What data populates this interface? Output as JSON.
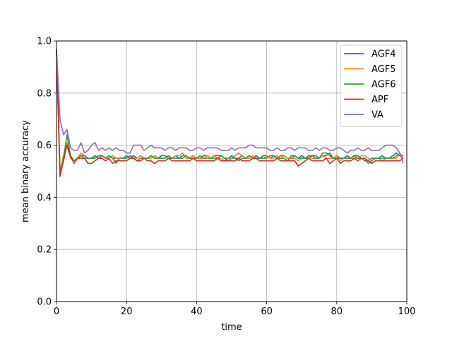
{
  "chart_data": {
    "type": "line",
    "xlabel": "time",
    "ylabel": "mean binary accuracy",
    "xlim": [
      0,
      100
    ],
    "ylim": [
      0,
      1
    ],
    "xticks": [
      0,
      20,
      40,
      60,
      80,
      100
    ],
    "xtick_labels": [
      "0",
      "20",
      "40",
      "60",
      "80",
      "100"
    ],
    "yticks": [
      0,
      0.2,
      0.4,
      0.6,
      0.8,
      1.0
    ],
    "ytick_labels": [
      "0.0",
      "0.2",
      "0.4",
      "0.6",
      "0.8",
      "1.0"
    ],
    "grid": true,
    "legend_position": "top-right",
    "series": [
      {
        "name": "AGF4",
        "color": "#1f77b4",
        "values": [
          0.97,
          0.49,
          0.55,
          0.6,
          0.55,
          0.54,
          0.55,
          0.56,
          0.55,
          0.55,
          0.55,
          0.56,
          0.55,
          0.56,
          0.55,
          0.56,
          0.55,
          0.55,
          0.55,
          0.55,
          0.56,
          0.55,
          0.56,
          0.55,
          0.56,
          0.55,
          0.55,
          0.56,
          0.55,
          0.55,
          0.56,
          0.56,
          0.55,
          0.55,
          0.56,
          0.55,
          0.56,
          0.56,
          0.55,
          0.56,
          0.55,
          0.55,
          0.56,
          0.56,
          0.55,
          0.56,
          0.56,
          0.56,
          0.55,
          0.55,
          0.56,
          0.55,
          0.55,
          0.56,
          0.55,
          0.56,
          0.55,
          0.56,
          0.55,
          0.56,
          0.56,
          0.55,
          0.56,
          0.55,
          0.56,
          0.56,
          0.55,
          0.55,
          0.56,
          0.55,
          0.56,
          0.55,
          0.55,
          0.56,
          0.56,
          0.55,
          0.56,
          0.56,
          0.57,
          0.55,
          0.56,
          0.55,
          0.55,
          0.56,
          0.55,
          0.56,
          0.56,
          0.55,
          0.55,
          0.54,
          0.55,
          0.55,
          0.55,
          0.56,
          0.55,
          0.55,
          0.56,
          0.57,
          0.56,
          0.56
        ]
      },
      {
        "name": "AGF5",
        "color": "#ff7f0e",
        "values": [
          0.97,
          0.5,
          0.56,
          0.61,
          0.55,
          0.54,
          0.55,
          0.57,
          0.56,
          0.55,
          0.55,
          0.55,
          0.56,
          0.56,
          0.55,
          0.55,
          0.56,
          0.55,
          0.55,
          0.55,
          0.55,
          0.56,
          0.55,
          0.55,
          0.56,
          0.55,
          0.55,
          0.55,
          0.56,
          0.55,
          0.55,
          0.55,
          0.56,
          0.55,
          0.56,
          0.56,
          0.57,
          0.55,
          0.55,
          0.56,
          0.55,
          0.55,
          0.55,
          0.56,
          0.55,
          0.56,
          0.55,
          0.55,
          0.54,
          0.55,
          0.55,
          0.56,
          0.57,
          0.56,
          0.55,
          0.55,
          0.56,
          0.55,
          0.55,
          0.55,
          0.56,
          0.55,
          0.55,
          0.56,
          0.55,
          0.56,
          0.55,
          0.55,
          0.55,
          0.54,
          0.55,
          0.55,
          0.56,
          0.55,
          0.55,
          0.55,
          0.56,
          0.55,
          0.55,
          0.55,
          0.56,
          0.54,
          0.55,
          0.55,
          0.55,
          0.55,
          0.55,
          0.56,
          0.56,
          0.55,
          0.54,
          0.55,
          0.55,
          0.54,
          0.55,
          0.55,
          0.55,
          0.55,
          0.57,
          0.55
        ]
      },
      {
        "name": "AGF6",
        "color": "#2ca02c",
        "values": [
          0.97,
          0.49,
          0.55,
          0.64,
          0.56,
          0.54,
          0.55,
          0.56,
          0.56,
          0.55,
          0.55,
          0.55,
          0.56,
          0.56,
          0.55,
          0.56,
          0.55,
          0.53,
          0.55,
          0.55,
          0.55,
          0.56,
          0.55,
          0.54,
          0.55,
          0.55,
          0.55,
          0.56,
          0.55,
          0.55,
          0.55,
          0.55,
          0.56,
          0.55,
          0.55,
          0.55,
          0.55,
          0.56,
          0.55,
          0.55,
          0.55,
          0.56,
          0.55,
          0.55,
          0.55,
          0.55,
          0.55,
          0.56,
          0.55,
          0.54,
          0.55,
          0.55,
          0.54,
          0.55,
          0.55,
          0.56,
          0.55,
          0.55,
          0.55,
          0.55,
          0.55,
          0.56,
          0.56,
          0.55,
          0.55,
          0.55,
          0.54,
          0.56,
          0.56,
          0.55,
          0.55,
          0.55,
          0.56,
          0.56,
          0.55,
          0.55,
          0.57,
          0.57,
          0.56,
          0.55,
          0.55,
          0.55,
          0.55,
          0.55,
          0.55,
          0.56,
          0.55,
          0.55,
          0.55,
          0.53,
          0.54,
          0.55,
          0.55,
          0.55,
          0.55,
          0.55,
          0.55,
          0.56,
          0.56,
          0.56
        ]
      },
      {
        "name": "APF",
        "color": "#d62728",
        "values": [
          0.97,
          0.48,
          0.54,
          0.6,
          0.56,
          0.53,
          0.55,
          0.55,
          0.55,
          0.53,
          0.53,
          0.54,
          0.55,
          0.55,
          0.54,
          0.55,
          0.53,
          0.54,
          0.54,
          0.54,
          0.54,
          0.55,
          0.55,
          0.54,
          0.54,
          0.55,
          0.54,
          0.54,
          0.53,
          0.54,
          0.54,
          0.54,
          0.55,
          0.54,
          0.54,
          0.54,
          0.54,
          0.54,
          0.54,
          0.55,
          0.54,
          0.54,
          0.54,
          0.54,
          0.54,
          0.54,
          0.55,
          0.54,
          0.54,
          0.54,
          0.54,
          0.54,
          0.55,
          0.54,
          0.54,
          0.54,
          0.55,
          0.55,
          0.54,
          0.54,
          0.54,
          0.54,
          0.54,
          0.55,
          0.54,
          0.54,
          0.54,
          0.54,
          0.54,
          0.52,
          0.53,
          0.54,
          0.55,
          0.54,
          0.54,
          0.54,
          0.54,
          0.55,
          0.53,
          0.54,
          0.55,
          0.53,
          0.54,
          0.54,
          0.54,
          0.55,
          0.54,
          0.55,
          0.54,
          0.54,
          0.53,
          0.54,
          0.54,
          0.54,
          0.54,
          0.54,
          0.54,
          0.54,
          0.54,
          0.55
        ]
      },
      {
        "name": "VA",
        "color": "#9467bd",
        "values": [
          0.97,
          0.7,
          0.64,
          0.66,
          0.59,
          0.58,
          0.58,
          0.61,
          0.57,
          0.58,
          0.6,
          0.61,
          0.58,
          0.59,
          0.58,
          0.59,
          0.58,
          0.59,
          0.58,
          0.58,
          0.57,
          0.57,
          0.6,
          0.6,
          0.6,
          0.58,
          0.59,
          0.6,
          0.59,
          0.59,
          0.59,
          0.58,
          0.59,
          0.59,
          0.58,
          0.59,
          0.59,
          0.59,
          0.58,
          0.58,
          0.59,
          0.59,
          0.58,
          0.59,
          0.59,
          0.59,
          0.59,
          0.58,
          0.58,
          0.58,
          0.59,
          0.58,
          0.59,
          0.59,
          0.59,
          0.6,
          0.6,
          0.59,
          0.59,
          0.59,
          0.59,
          0.58,
          0.58,
          0.59,
          0.58,
          0.58,
          0.59,
          0.59,
          0.58,
          0.59,
          0.59,
          0.59,
          0.58,
          0.58,
          0.59,
          0.58,
          0.59,
          0.59,
          0.58,
          0.58,
          0.59,
          0.59,
          0.58,
          0.57,
          0.58,
          0.58,
          0.59,
          0.58,
          0.58,
          0.59,
          0.58,
          0.58,
          0.58,
          0.59,
          0.6,
          0.6,
          0.6,
          0.59,
          0.57,
          0.53
        ]
      }
    ]
  }
}
